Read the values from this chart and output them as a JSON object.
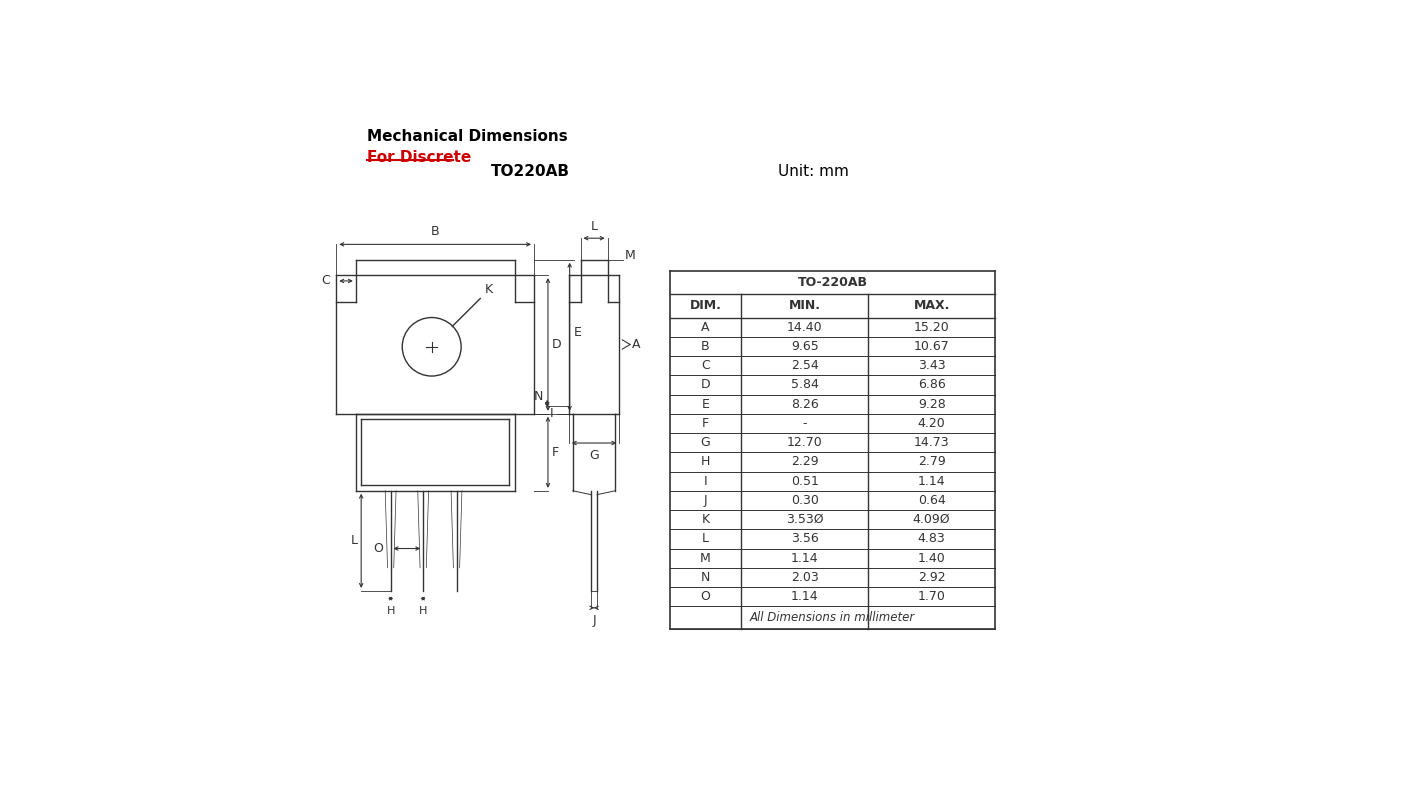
{
  "title1": "Mechanical Dimensions",
  "title2": "For Discrete",
  "package_label": "TO220AB",
  "unit_label": "Unit: mm",
  "bg_color": "#ffffff",
  "line_color": "#333333",
  "table_header": "TO-220AB",
  "col_headers": [
    "DIM.",
    "MIN.",
    "MAX."
  ],
  "rows": [
    [
      "A",
      "14.40",
      "15.20"
    ],
    [
      "B",
      "9.65",
      "10.67"
    ],
    [
      "C",
      "2.54",
      "3.43"
    ],
    [
      "D",
      "5.84",
      "6.86"
    ],
    [
      "E",
      "8.26",
      "9.28"
    ],
    [
      "F",
      "-",
      "4.20"
    ],
    [
      "G",
      "12.70",
      "14.73"
    ],
    [
      "H",
      "2.29",
      "2.79"
    ],
    [
      "I",
      "0.51",
      "1.14"
    ],
    [
      "J",
      "0.30",
      "0.64"
    ],
    [
      "K",
      "3.53Ø",
      "4.09Ø"
    ],
    [
      "L",
      "3.56",
      "4.83"
    ],
    [
      "M",
      "1.14",
      "1.40"
    ],
    [
      "N",
      "2.03",
      "2.92"
    ],
    [
      "O",
      "1.14",
      "1.70"
    ]
  ],
  "footer": "All Dimensions in millimeter",
  "underline_color": "#cc0000",
  "title2_color": "#cc0000"
}
